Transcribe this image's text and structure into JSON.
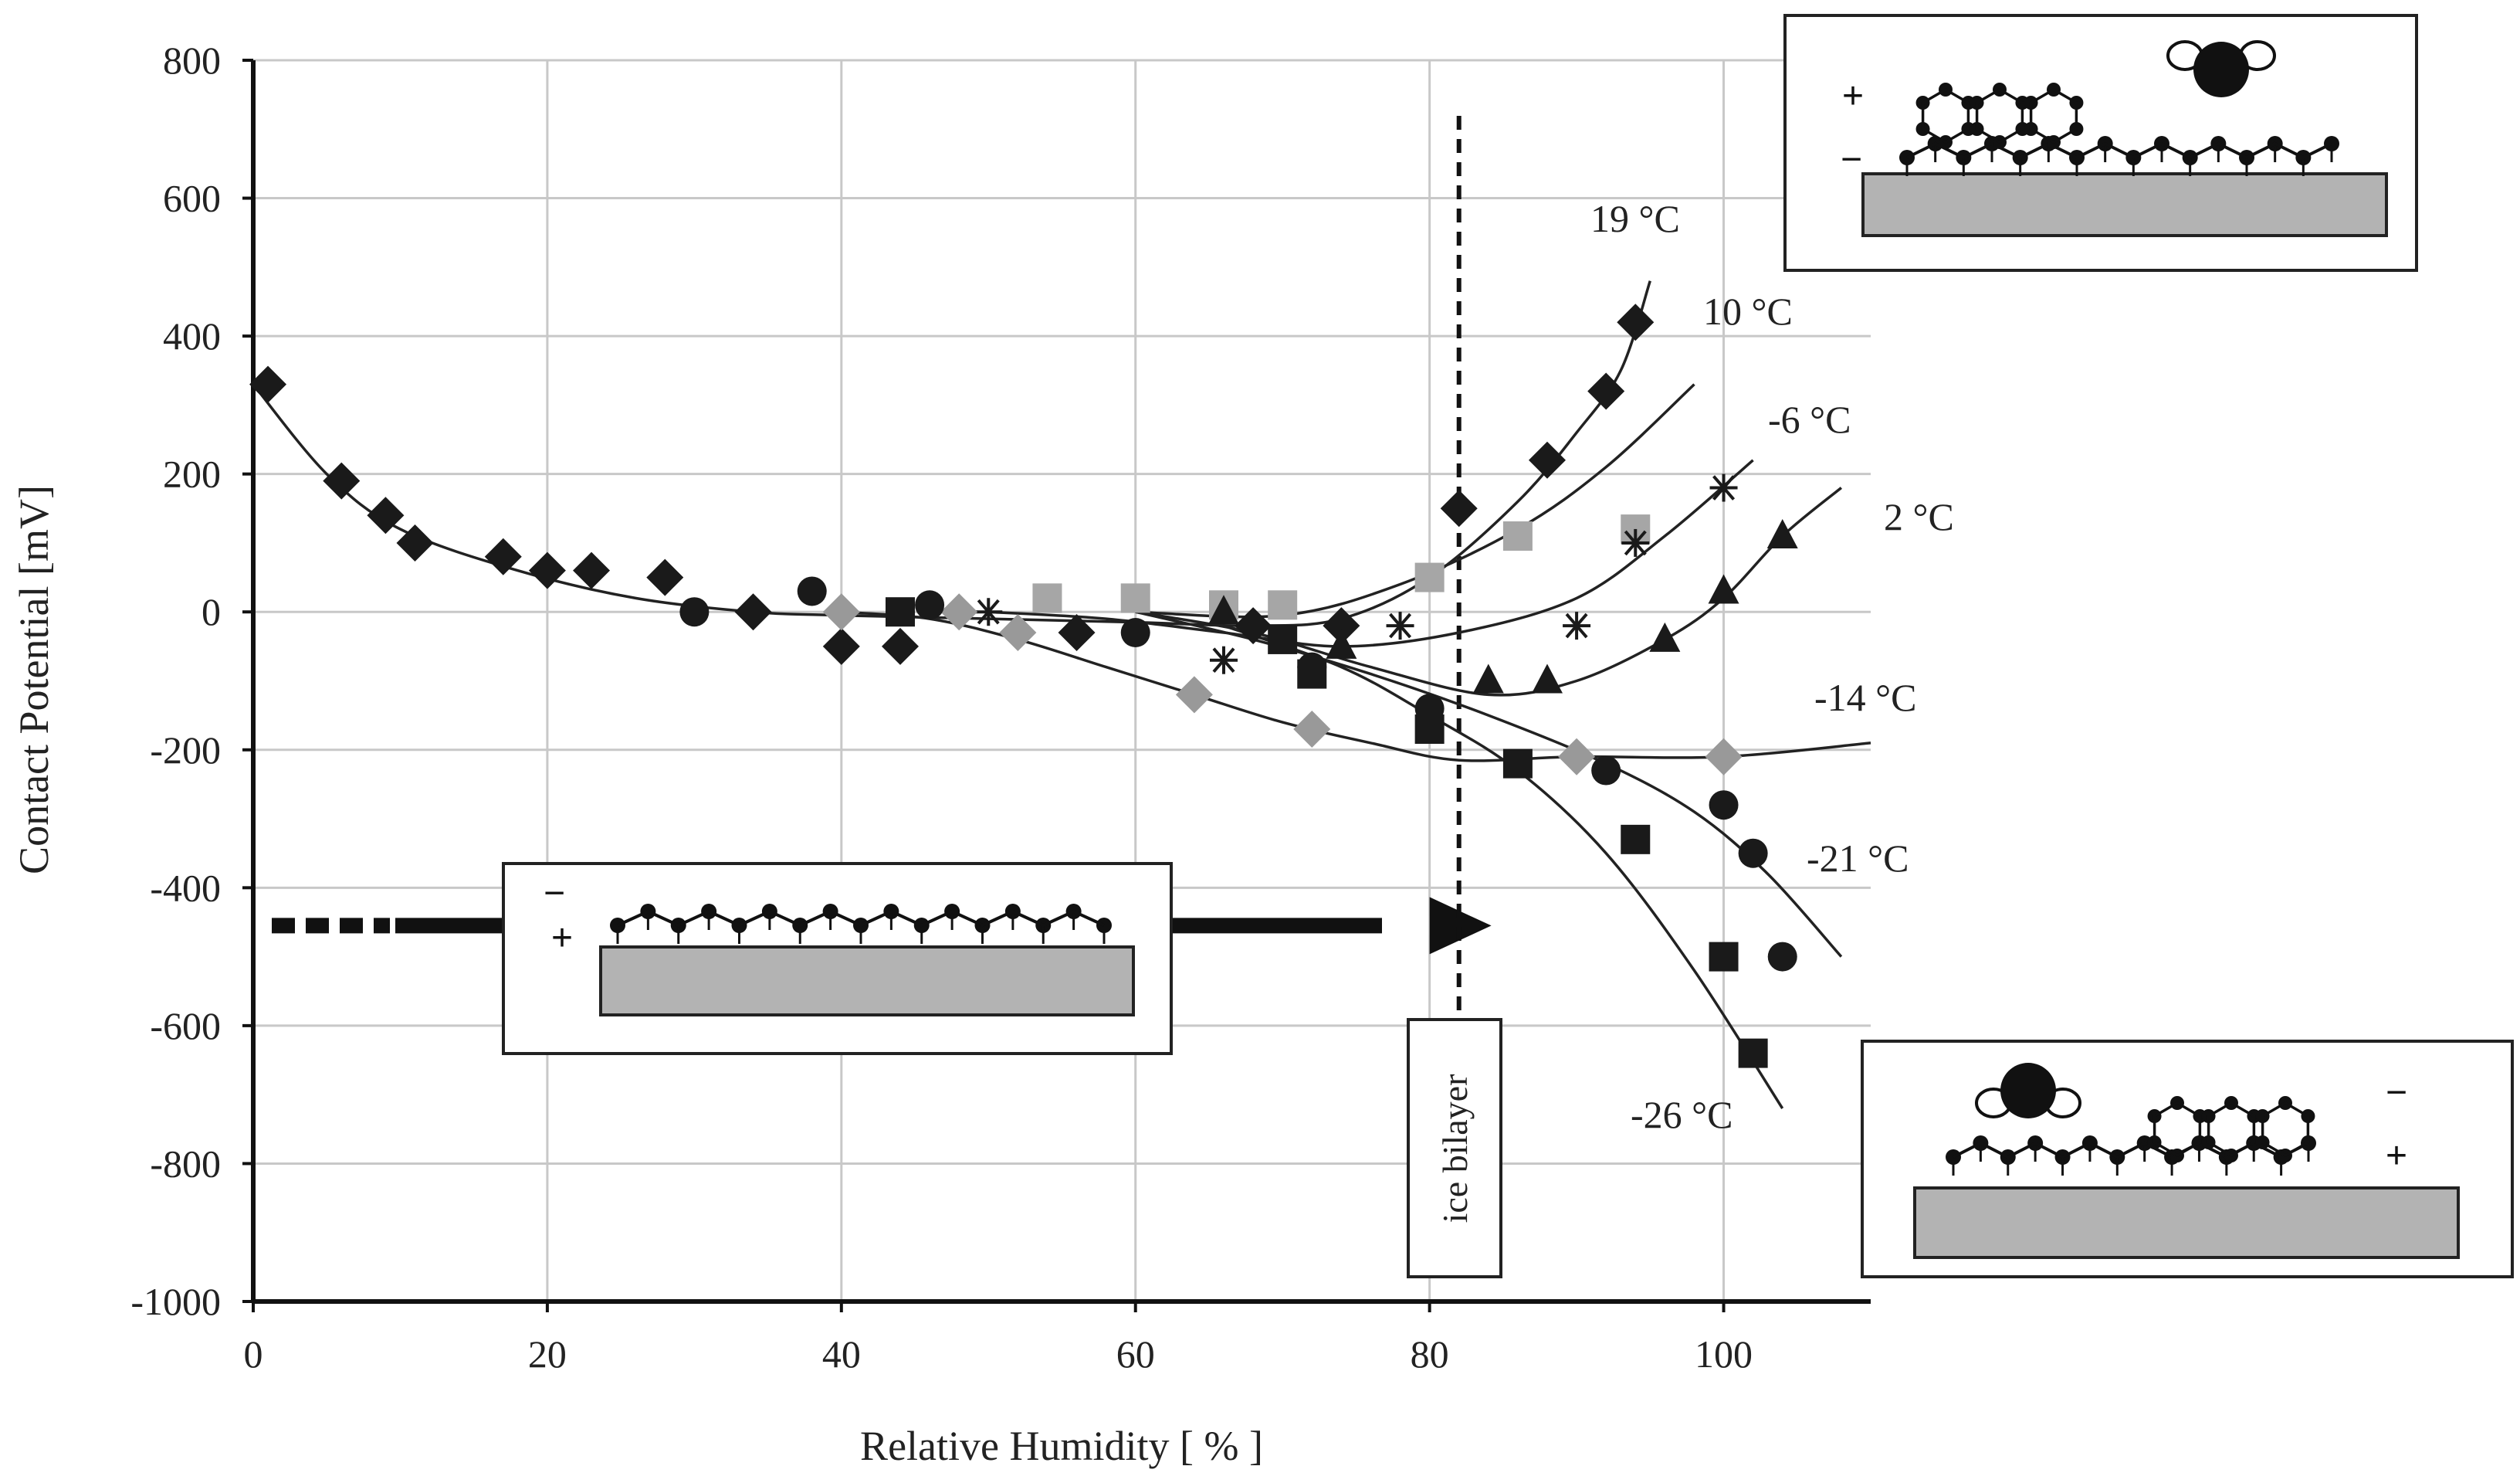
{
  "chart_data": {
    "type": "scatter",
    "title": "",
    "xlabel": "Relative Humidity [ % ]",
    "ylabel": "Contact Potential [mV]",
    "xlim": [
      0,
      110
    ],
    "ylim": [
      -1000,
      800
    ],
    "x_ticks": [
      "0",
      "20",
      "40",
      "60",
      "80",
      "100"
    ],
    "y_ticks": [
      "-1000",
      "-800",
      "-600",
      "-400",
      "-200",
      "0",
      "200",
      "400",
      "600",
      "800"
    ],
    "grid": true,
    "series": [
      {
        "name": "19 °C",
        "marker": "diamond",
        "color": "#1a1a1a",
        "points": [
          [
            1,
            330
          ],
          [
            6,
            190
          ],
          [
            9,
            140
          ],
          [
            11,
            100
          ],
          [
            17,
            80
          ],
          [
            20,
            60
          ],
          [
            23,
            60
          ],
          [
            28,
            50
          ],
          [
            34,
            0
          ],
          [
            40,
            -50
          ],
          [
            44,
            -50
          ],
          [
            56,
            -30
          ],
          [
            68,
            -20
          ],
          [
            74,
            -20
          ],
          [
            82,
            150
          ],
          [
            88,
            220
          ],
          [
            92,
            320
          ],
          [
            94,
            420
          ]
        ],
        "curve": [
          [
            0,
            330
          ],
          [
            5,
            200
          ],
          [
            10,
            120
          ],
          [
            18,
            60
          ],
          [
            26,
            20
          ],
          [
            34,
            0
          ],
          [
            40,
            -5
          ],
          [
            50,
            -10
          ],
          [
            60,
            -15
          ],
          [
            68,
            -20
          ],
          [
            74,
            -10
          ],
          [
            80,
            50
          ],
          [
            86,
            160
          ],
          [
            90,
            260
          ],
          [
            93,
            350
          ],
          [
            95,
            480
          ]
        ]
      },
      {
        "name": "10 °C",
        "marker": "square",
        "color": "#a6a6a6",
        "points": [
          [
            54,
            20
          ],
          [
            60,
            20
          ],
          [
            66,
            10
          ],
          [
            70,
            10
          ],
          [
            80,
            50
          ],
          [
            86,
            110
          ],
          [
            94,
            120
          ]
        ],
        "curve": [
          [
            60,
            0
          ],
          [
            70,
            -5
          ],
          [
            78,
            40
          ],
          [
            86,
            120
          ],
          [
            92,
            210
          ],
          [
            98,
            330
          ]
        ]
      },
      {
        "name": "-6 °C",
        "marker": "star",
        "color": "#1a1a1a",
        "points": [
          [
            50,
            0
          ],
          [
            66,
            -70
          ],
          [
            78,
            -20
          ],
          [
            90,
            -20
          ],
          [
            94,
            100
          ],
          [
            100,
            180
          ]
        ],
        "curve": [
          [
            50,
            0
          ],
          [
            58,
            -10
          ],
          [
            66,
            -30
          ],
          [
            74,
            -50
          ],
          [
            82,
            -30
          ],
          [
            90,
            20
          ],
          [
            96,
            110
          ],
          [
            102,
            220
          ]
        ]
      },
      {
        "name": "2 °C",
        "marker": "triangle",
        "color": "#1a1a1a",
        "points": [
          [
            66,
            0
          ],
          [
            74,
            -50
          ],
          [
            84,
            -100
          ],
          [
            88,
            -100
          ],
          [
            96,
            -40
          ],
          [
            100,
            30
          ],
          [
            104,
            110
          ]
        ],
        "curve": [
          [
            60,
            0
          ],
          [
            68,
            -30
          ],
          [
            76,
            -80
          ],
          [
            84,
            -120
          ],
          [
            90,
            -100
          ],
          [
            96,
            -40
          ],
          [
            100,
            20
          ],
          [
            104,
            110
          ],
          [
            108,
            180
          ]
        ]
      },
      {
        "name": "-14 °C",
        "marker": "diamond",
        "color": "#999999",
        "points": [
          [
            40,
            0
          ],
          [
            48,
            0
          ],
          [
            52,
            -30
          ],
          [
            64,
            -120
          ],
          [
            72,
            -170
          ],
          [
            90,
            -210
          ],
          [
            100,
            -210
          ]
        ],
        "curve": [
          [
            40,
            0
          ],
          [
            46,
            -10
          ],
          [
            52,
            -40
          ],
          [
            58,
            -80
          ],
          [
            64,
            -120
          ],
          [
            70,
            -160
          ],
          [
            76,
            -190
          ],
          [
            82,
            -215
          ],
          [
            90,
            -210
          ],
          [
            100,
            -210
          ],
          [
            110,
            -190
          ]
        ]
      },
      {
        "name": "-21 °C",
        "marker": "circle",
        "color": "#1a1a1a",
        "points": [
          [
            30,
            0
          ],
          [
            38,
            30
          ],
          [
            46,
            10
          ],
          [
            60,
            -30
          ],
          [
            72,
            -80
          ],
          [
            80,
            -140
          ],
          [
            92,
            -230
          ],
          [
            100,
            -280
          ],
          [
            102,
            -350
          ],
          [
            104,
            -500
          ]
        ],
        "curve": [
          [
            60,
            0
          ],
          [
            68,
            -40
          ],
          [
            76,
            -90
          ],
          [
            84,
            -150
          ],
          [
            92,
            -220
          ],
          [
            98,
            -290
          ],
          [
            103,
            -380
          ],
          [
            108,
            -500
          ]
        ]
      },
      {
        "name": "-26 °C",
        "marker": "square",
        "color": "#1a1a1a",
        "points": [
          [
            44,
            0
          ],
          [
            70,
            -40
          ],
          [
            72,
            -90
          ],
          [
            80,
            -170
          ],
          [
            86,
            -220
          ],
          [
            94,
            -330
          ],
          [
            100,
            -500
          ],
          [
            102,
            -640
          ]
        ],
        "curve": [
          [
            66,
            -20
          ],
          [
            74,
            -80
          ],
          [
            80,
            -150
          ],
          [
            86,
            -230
          ],
          [
            92,
            -350
          ],
          [
            98,
            -520
          ],
          [
            104,
            -720
          ]
        ]
      }
    ],
    "annotations": {
      "ice_bilayer": {
        "label": "ice bilayer",
        "x": 82
      },
      "arrow_y": -455,
      "signs": {
        "minus": "−",
        "plus": "+"
      }
    }
  }
}
